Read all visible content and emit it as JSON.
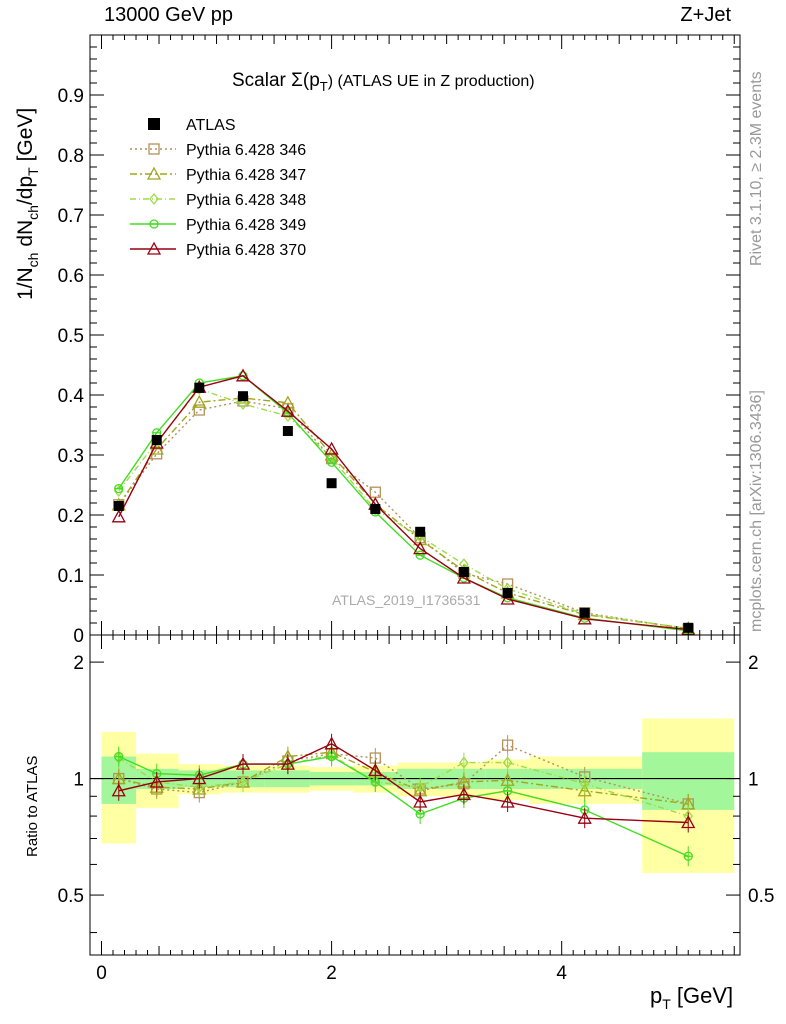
{
  "header": {
    "left": "13000 GeV pp",
    "right": "Z+Jet"
  },
  "side_labels": {
    "rivet": "Rivet 3.1.10, ≥ 2.3M events",
    "mcplots": "mcplots.cern.ch [arXiv:1306.3436]"
  },
  "watermark": "ATLAS_2019_I1736531",
  "chart_data": {
    "type": "line",
    "title_main": "Scalar Σ(p",
    "title_sub": "T",
    "title_end": ") (ATLAS UE in Z production)",
    "xlabel": "p",
    "xlabel_sub": "T",
    "xlabel_unit": " [GeV]",
    "ylabel": "1/N",
    "ylabel_sub1": "ch",
    "ylabel_mid": " dN",
    "ylabel_sub2": "ch",
    "ylabel_mid2": "/dp",
    "ylabel_sub3": "T",
    "ylabel_unit": " [GeV]",
    "ratio_ylabel": "Ratio to ATLAS",
    "xlim": [
      -0.1,
      5.55
    ],
    "ylim": [
      0,
      1.0
    ],
    "ratio_ylim": [
      0.35,
      2.35
    ],
    "x_ticks": [
      "0",
      "2",
      "4"
    ],
    "x_tick_values": [
      0,
      2,
      4
    ],
    "y_ticks": [
      "0",
      "0.1",
      "0.2",
      "0.3",
      "0.4",
      "0.5",
      "0.6",
      "0.7",
      "0.8",
      "0.9"
    ],
    "y_tick_values": [
      0,
      0.1,
      0.2,
      0.3,
      0.4,
      0.5,
      0.6,
      0.7,
      0.8,
      0.9
    ],
    "ratio_ticks": [
      "0.5",
      "1",
      "2"
    ],
    "ratio_tick_values": [
      0.5,
      1,
      2
    ],
    "x": [
      0.15,
      0.48,
      0.85,
      1.23,
      1.62,
      2.0,
      2.38,
      2.77,
      3.15,
      3.53,
      4.2,
      5.1
    ],
    "bin_edges": [
      0,
      0.3,
      0.67,
      1.04,
      1.42,
      1.81,
      2.19,
      2.57,
      2.96,
      3.34,
      3.72,
      4.7,
      5.5
    ],
    "data": {
      "name": "ATLAS",
      "values": [
        0.215,
        0.325,
        0.412,
        0.398,
        0.34,
        0.253,
        0.21,
        0.172,
        0.105,
        0.07,
        0.037,
        0.012
      ],
      "band_inner": [
        0.14,
        0.06,
        0.05,
        0.05,
        0.05,
        0.04,
        0.04,
        0.06,
        0.06,
        0.06,
        0.06,
        0.17
      ],
      "band_outer": [
        0.32,
        0.16,
        0.09,
        0.08,
        0.08,
        0.07,
        0.08,
        0.1,
        0.1,
        0.12,
        0.14,
        0.43
      ]
    },
    "series": [
      {
        "name": "Pythia 6.428 346",
        "color": "#b5915b",
        "marker": "square",
        "dash": "2,3",
        "values": [
          0.217,
          0.302,
          0.375,
          0.39,
          0.377,
          0.294,
          0.238,
          0.162,
          0.103,
          0.085,
          0.037,
          0.01
        ],
        "ratio": [
          1.0,
          0.94,
          0.92,
          0.98,
          1.11,
          1.16,
          1.13,
          0.94,
          0.97,
          1.22,
          1.01,
          0.86
        ]
      },
      {
        "name": "Pythia 6.428 347",
        "color": "#a1a61d",
        "marker": "triangle",
        "dash": "7,3,2,3",
        "values": [
          0.217,
          0.31,
          0.388,
          0.395,
          0.387,
          0.3,
          0.218,
          0.159,
          0.107,
          0.07,
          0.034,
          0.011
        ],
        "ratio": [
          1.0,
          0.95,
          0.94,
          0.98,
          1.14,
          1.17,
          1.04,
          0.93,
          0.98,
          0.99,
          0.93,
          0.86
        ]
      },
      {
        "name": "Pythia 6.428 348",
        "color": "#9ddb4a",
        "marker": "diamond",
        "dash": "6,3,1,3",
        "values": [
          0.24,
          0.322,
          0.41,
          0.385,
          0.365,
          0.295,
          0.209,
          0.164,
          0.118,
          0.077,
          0.035,
          0.011
        ],
        "ratio": [
          1.13,
          0.98,
          0.95,
          0.98,
          1.09,
          1.15,
          0.98,
          0.95,
          1.1,
          1.1,
          0.97,
          0.8
        ]
      },
      {
        "name": "Pythia 6.428 349",
        "color": "#44dd22",
        "marker": "circle",
        "dash": "",
        "values": [
          0.244,
          0.337,
          0.42,
          0.432,
          0.37,
          0.288,
          0.205,
          0.133,
          0.095,
          0.062,
          0.028,
          0.007
        ],
        "ratio": [
          1.14,
          1.03,
          1.02,
          1.09,
          1.09,
          1.14,
          0.98,
          0.81,
          0.89,
          0.93,
          0.83,
          0.63
        ]
      },
      {
        "name": "Pythia 6.428 370",
        "color": "#990011",
        "marker": "triangle",
        "dash": "",
        "values": [
          0.197,
          0.32,
          0.413,
          0.432,
          0.373,
          0.31,
          0.218,
          0.144,
          0.095,
          0.06,
          0.027,
          0.009
        ],
        "ratio": [
          0.93,
          0.98,
          1.0,
          1.09,
          1.09,
          1.23,
          1.05,
          0.87,
          0.91,
          0.87,
          0.79,
          0.77
        ]
      }
    ]
  }
}
